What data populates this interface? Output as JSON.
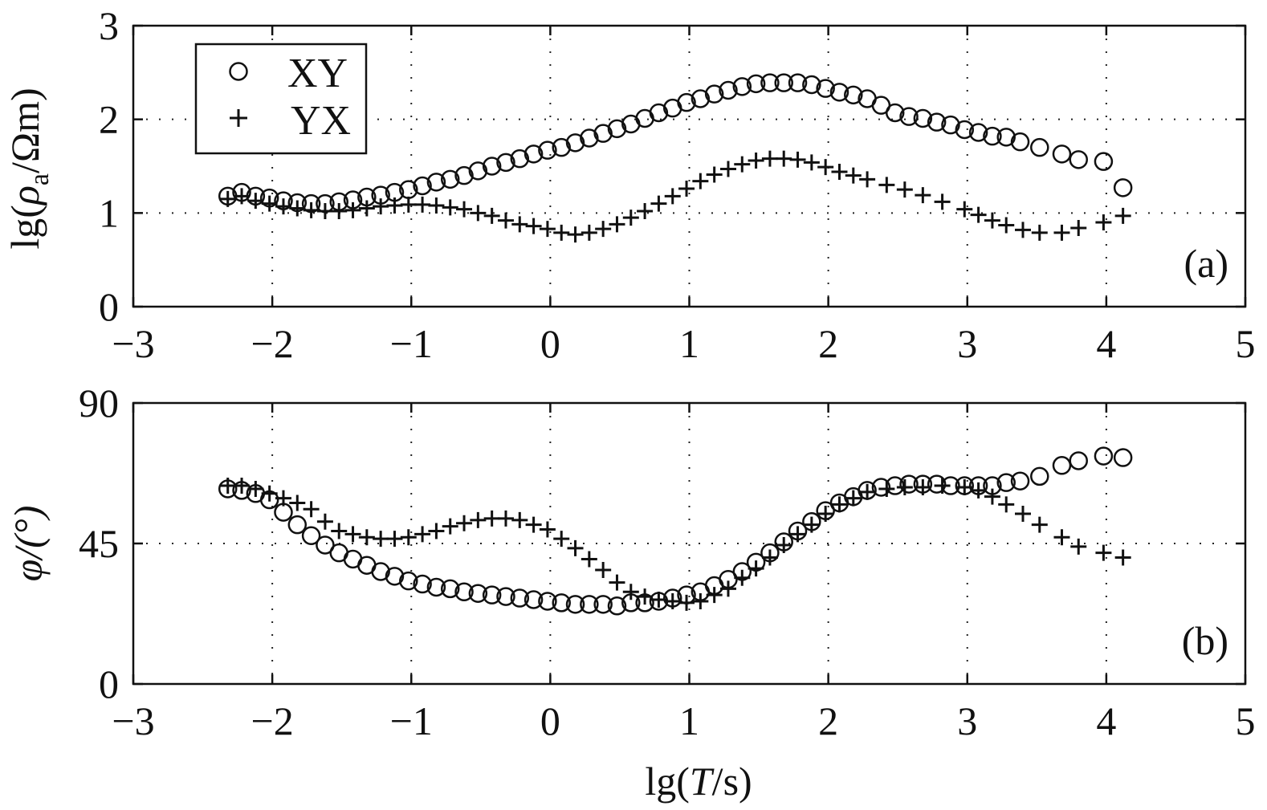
{
  "chart_data": [
    {
      "type": "scatter",
      "panel_label": "(a)",
      "ylabel": "lg(ρa/Ωm)",
      "ylabel_parts": {
        "pre": "lg(",
        "symbol": "ρ",
        "subscript": "a",
        "post": "/Ωm)"
      },
      "xlim": [
        -3,
        5
      ],
      "ylim": [
        0,
        3
      ],
      "x_ticks": [
        -3,
        -2,
        -1,
        0,
        1,
        2,
        3,
        4,
        5
      ],
      "x_tick_labels": [
        "−3",
        "−2",
        "−1",
        "0",
        "1",
        "2",
        "3",
        "4",
        "5"
      ],
      "y_ticks": [
        0,
        1,
        2,
        3
      ],
      "y_tick_labels": [
        "0",
        "1",
        "2",
        "3"
      ],
      "grid": "dotted",
      "legend": {
        "position": "top-left",
        "entries": [
          {
            "marker": "○",
            "label": "XY"
          },
          {
            "marker": "+",
            "label": "YX"
          }
        ]
      },
      "series": [
        {
          "name": "XY",
          "marker": "circle",
          "x": [
            -2.32,
            -2.22,
            -2.12,
            -2.02,
            -1.92,
            -1.82,
            -1.72,
            -1.62,
            -1.52,
            -1.42,
            -1.32,
            -1.22,
            -1.12,
            -1.02,
            -0.92,
            -0.82,
            -0.72,
            -0.62,
            -0.52,
            -0.42,
            -0.32,
            -0.22,
            -0.12,
            -0.02,
            0.08,
            0.18,
            0.28,
            0.38,
            0.48,
            0.58,
            0.68,
            0.78,
            0.88,
            0.98,
            1.08,
            1.18,
            1.28,
            1.38,
            1.48,
            1.58,
            1.68,
            1.78,
            1.88,
            1.98,
            2.08,
            2.18,
            2.28,
            2.38,
            2.48,
            2.58,
            2.68,
            2.78,
            2.88,
            2.98,
            3.08,
            3.18,
            3.28,
            3.38,
            3.52,
            3.68,
            3.8,
            3.98,
            4.12
          ],
          "y": [
            1.18,
            1.22,
            1.18,
            1.16,
            1.13,
            1.11,
            1.1,
            1.1,
            1.12,
            1.14,
            1.17,
            1.19,
            1.22,
            1.25,
            1.29,
            1.33,
            1.36,
            1.4,
            1.45,
            1.5,
            1.54,
            1.58,
            1.63,
            1.67,
            1.7,
            1.75,
            1.8,
            1.85,
            1.9,
            1.95,
            2.01,
            2.07,
            2.12,
            2.18,
            2.22,
            2.27,
            2.31,
            2.35,
            2.38,
            2.39,
            2.39,
            2.39,
            2.37,
            2.33,
            2.29,
            2.26,
            2.22,
            2.15,
            2.07,
            2.03,
            2.01,
            1.97,
            1.94,
            1.89,
            1.86,
            1.82,
            1.81,
            1.76,
            1.7,
            1.63,
            1.57,
            1.55,
            1.27
          ]
        },
        {
          "name": "YX",
          "marker": "plus",
          "x": [
            -2.32,
            -2.22,
            -2.12,
            -2.02,
            -1.92,
            -1.82,
            -1.72,
            -1.62,
            -1.52,
            -1.42,
            -1.32,
            -1.22,
            -1.12,
            -1.02,
            -0.92,
            -0.82,
            -0.72,
            -0.62,
            -0.52,
            -0.42,
            -0.32,
            -0.22,
            -0.12,
            -0.02,
            0.08,
            0.18,
            0.28,
            0.38,
            0.48,
            0.58,
            0.68,
            0.78,
            0.88,
            0.98,
            1.08,
            1.18,
            1.28,
            1.38,
            1.48,
            1.58,
            1.68,
            1.78,
            1.88,
            1.98,
            2.08,
            2.18,
            2.28,
            2.42,
            2.55,
            2.68,
            2.82,
            2.98,
            3.08,
            3.18,
            3.28,
            3.4,
            3.52,
            3.68,
            3.8,
            3.98,
            4.12
          ],
          "y": [
            1.15,
            1.18,
            1.13,
            1.1,
            1.07,
            1.05,
            1.03,
            1.02,
            1.02,
            1.03,
            1.05,
            1.07,
            1.08,
            1.09,
            1.09,
            1.08,
            1.06,
            1.04,
            1.0,
            0.97,
            0.92,
            0.88,
            0.86,
            0.83,
            0.79,
            0.77,
            0.79,
            0.83,
            0.88,
            0.95,
            1.02,
            1.1,
            1.18,
            1.26,
            1.34,
            1.41,
            1.47,
            1.52,
            1.56,
            1.58,
            1.58,
            1.57,
            1.54,
            1.49,
            1.44,
            1.4,
            1.36,
            1.3,
            1.25,
            1.19,
            1.12,
            1.04,
            0.98,
            0.92,
            0.87,
            0.82,
            0.79,
            0.79,
            0.84,
            0.9,
            0.97
          ]
        }
      ]
    },
    {
      "type": "scatter",
      "panel_label": "(b)",
      "ylabel": "φ/(°)",
      "xlabel": "lg(T/s)",
      "xlabel_parts": {
        "pre": "lg(",
        "symbol": "T",
        "post": "/s)"
      },
      "xlim": [
        -3,
        5
      ],
      "ylim": [
        0,
        90
      ],
      "x_ticks": [
        -3,
        -2,
        -1,
        0,
        1,
        2,
        3,
        4,
        5
      ],
      "x_tick_labels": [
        "−3",
        "−2",
        "−1",
        "0",
        "1",
        "2",
        "3",
        "4",
        "5"
      ],
      "y_ticks": [
        0,
        45,
        90
      ],
      "y_tick_labels": [
        "0",
        "45",
        "90"
      ],
      "grid": "dotted",
      "series": [
        {
          "name": "XY",
          "marker": "circle",
          "x": [
            -2.32,
            -2.22,
            -2.12,
            -2.02,
            -1.92,
            -1.82,
            -1.72,
            -1.62,
            -1.52,
            -1.42,
            -1.32,
            -1.22,
            -1.12,
            -1.02,
            -0.92,
            -0.82,
            -0.72,
            -0.62,
            -0.52,
            -0.42,
            -0.32,
            -0.22,
            -0.12,
            -0.02,
            0.08,
            0.18,
            0.28,
            0.38,
            0.48,
            0.58,
            0.68,
            0.78,
            0.88,
            0.98,
            1.08,
            1.18,
            1.28,
            1.38,
            1.48,
            1.58,
            1.68,
            1.78,
            1.88,
            1.98,
            2.08,
            2.18,
            2.28,
            2.38,
            2.48,
            2.58,
            2.68,
            2.78,
            2.88,
            2.98,
            3.08,
            3.18,
            3.28,
            3.38,
            3.52,
            3.68,
            3.8,
            3.98,
            4.12
          ],
          "y": [
            62.5,
            62.0,
            61.0,
            59.0,
            55.0,
            51.0,
            47.5,
            44.5,
            42.0,
            40.0,
            38.0,
            36.0,
            34.5,
            33.0,
            32.0,
            31.0,
            30.5,
            29.5,
            29.0,
            28.5,
            28.0,
            27.5,
            27.0,
            26.5,
            26.0,
            25.5,
            25.5,
            25.5,
            25.0,
            26.0,
            26.0,
            26.5,
            27.5,
            28.5,
            29.5,
            31.5,
            33.5,
            36.0,
            39.0,
            42.0,
            45.5,
            49.0,
            52.0,
            55.5,
            58.0,
            60.0,
            62.0,
            63.0,
            63.5,
            64.0,
            64.0,
            64.0,
            63.5,
            63.5,
            63.5,
            63.5,
            64.5,
            65.0,
            66.5,
            70.0,
            71.5,
            73.0,
            72.5
          ]
        },
        {
          "name": "YX",
          "marker": "plus",
          "x": [
            -2.32,
            -2.22,
            -2.12,
            -2.02,
            -1.92,
            -1.82,
            -1.72,
            -1.62,
            -1.52,
            -1.42,
            -1.32,
            -1.22,
            -1.12,
            -1.02,
            -0.92,
            -0.82,
            -0.72,
            -0.62,
            -0.52,
            -0.42,
            -0.32,
            -0.22,
            -0.12,
            -0.02,
            0.08,
            0.18,
            0.28,
            0.38,
            0.48,
            0.58,
            0.68,
            0.78,
            0.88,
            0.98,
            1.08,
            1.18,
            1.28,
            1.38,
            1.48,
            1.58,
            1.68,
            1.78,
            1.88,
            1.98,
            2.08,
            2.18,
            2.28,
            2.42,
            2.55,
            2.68,
            2.82,
            2.98,
            3.08,
            3.18,
            3.28,
            3.4,
            3.52,
            3.68,
            3.8,
            3.98,
            4.12
          ],
          "y": [
            63.5,
            63.5,
            62.5,
            61.0,
            59.5,
            58.0,
            56.0,
            52.0,
            49.0,
            48.0,
            47.0,
            46.5,
            46.5,
            47.0,
            48.0,
            49.0,
            50.5,
            51.5,
            52.5,
            53.0,
            53.0,
            52.5,
            51.0,
            49.5,
            46.5,
            43.5,
            40.0,
            36.5,
            32.5,
            29.5,
            28.0,
            27.0,
            26.5,
            26.0,
            26.5,
            28.5,
            30.5,
            34.0,
            37.0,
            40.5,
            44.5,
            48.0,
            51.0,
            54.5,
            57.5,
            59.5,
            61.5,
            62.5,
            63.0,
            63.0,
            63.5,
            63.0,
            62.0,
            60.0,
            57.5,
            54.5,
            51.0,
            47.0,
            44.0,
            42.0,
            40.5
          ]
        }
      ]
    }
  ]
}
